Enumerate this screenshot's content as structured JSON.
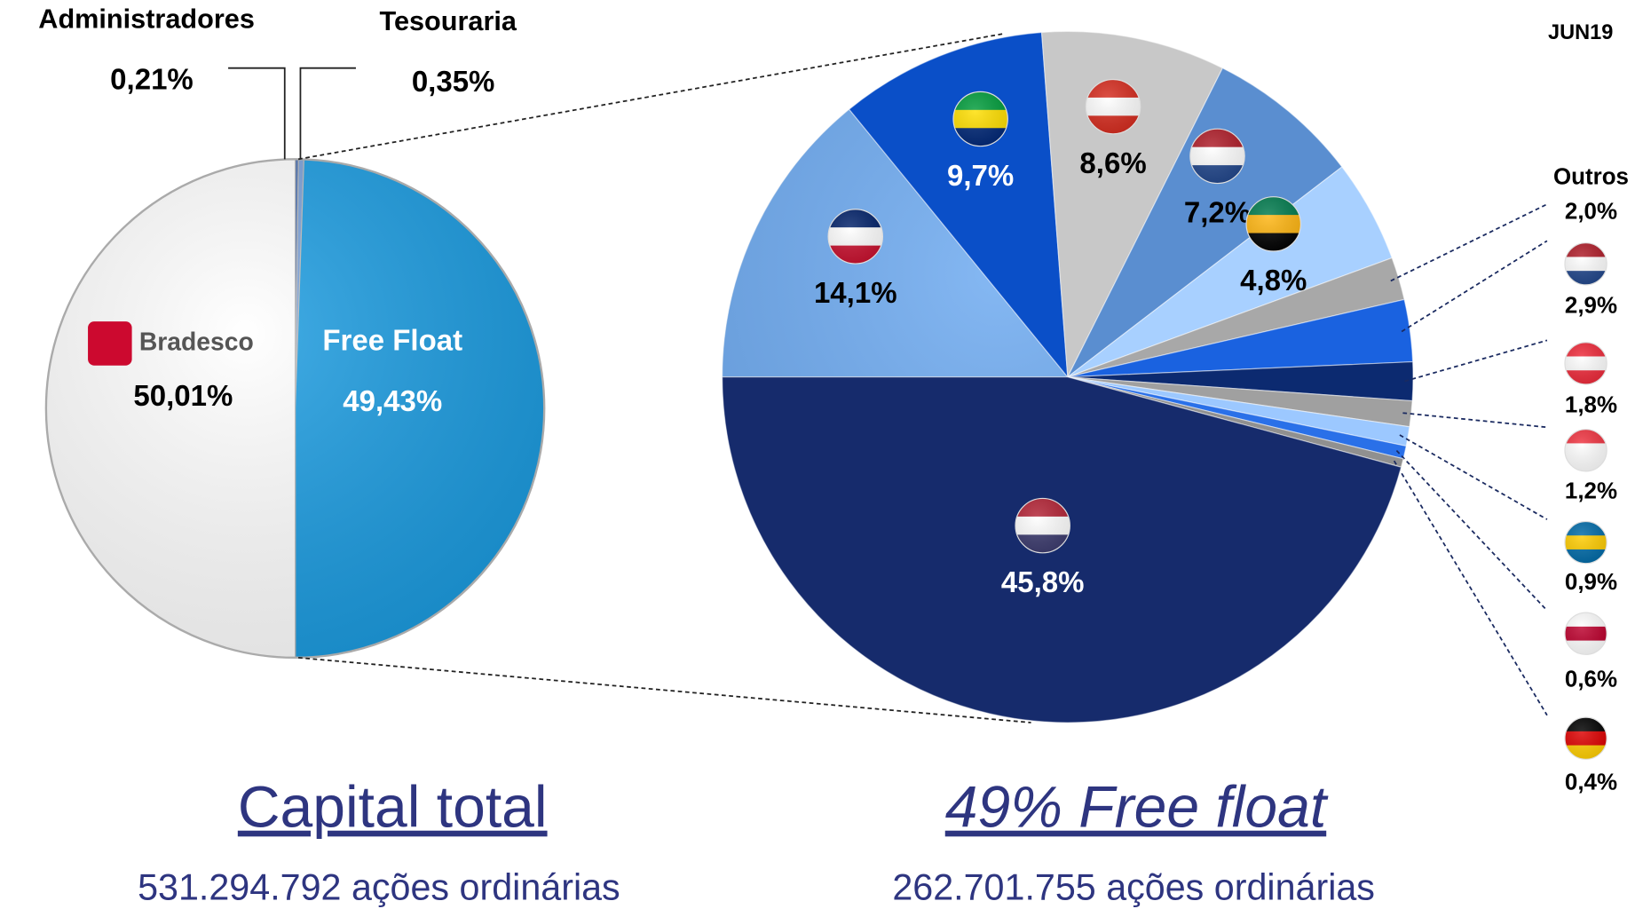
{
  "chart_data": [
    {
      "type": "pie",
      "title": "Capital total",
      "subtitle": "531.294.792 ações ordinárias",
      "categories": [
        "Administradores",
        "Tesouraria",
        "Free Float",
        "Bradesco"
      ],
      "values": [
        0.21,
        0.35,
        49.43,
        50.01
      ],
      "value_labels": [
        "0,21%",
        "0,35%",
        "49,43%",
        "50,01%"
      ],
      "colors": [
        "#4a6fb0",
        "#7aa0d8",
        "#1a9be0",
        "#ffffff"
      ]
    },
    {
      "type": "pie",
      "title": "49% Free float",
      "subtitle": "262.701.755 ações ordinárias",
      "annotation": "JUN19",
      "categories": [
        null,
        null,
        null,
        null,
        null,
        "Outros",
        null,
        null,
        null,
        null,
        null,
        null,
        null
      ],
      "values": [
        14.1,
        9.7,
        8.6,
        7.2,
        4.8,
        2.0,
        2.9,
        1.8,
        1.2,
        0.9,
        0.6,
        0.4,
        45.8
      ],
      "value_labels": [
        "14,1%",
        "9,7%",
        "8,6%",
        "7,2%",
        "4,8%",
        "2,0%",
        "2,9%",
        "1,8%",
        "1,2%",
        "0,9%",
        "0,6%",
        "0,4%",
        "45,8%"
      ],
      "colors": [
        "#6aa8f0",
        "#0a4fc8",
        "#c8c8c8",
        "#5a8ed0",
        "#a8d0ff",
        "#a8a8a8",
        "#1a62e0",
        "#0c2a70",
        "#a0a0a0",
        "#9cc8ff",
        "#2a70e8",
        "#909090",
        "#162b6c"
      ]
    }
  ]
}
